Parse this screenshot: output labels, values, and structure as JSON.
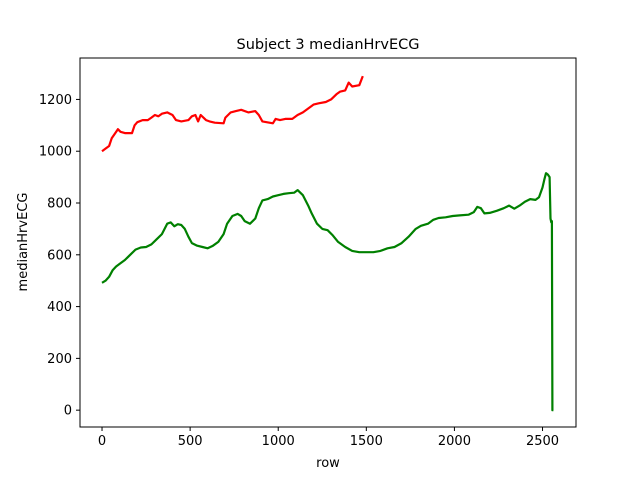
{
  "chart_data": {
    "type": "line",
    "title": "Subject 3 medianHrvECG",
    "xlabel": "row",
    "ylabel": "medianHrvECG",
    "xlim": [
      -125,
      2690
    ],
    "ylim": [
      -65,
      1360
    ],
    "xticks": [
      0,
      500,
      1000,
      1500,
      2000,
      2500
    ],
    "yticks": [
      0,
      200,
      400,
      600,
      800,
      1000,
      1200
    ],
    "grid": false,
    "legend": "none",
    "series": [
      {
        "color": "#ff0000",
        "points": [
          [
            0,
            1000
          ],
          [
            20,
            1010
          ],
          [
            40,
            1020
          ],
          [
            55,
            1050
          ],
          [
            70,
            1065
          ],
          [
            90,
            1085
          ],
          [
            105,
            1075
          ],
          [
            130,
            1070
          ],
          [
            170,
            1070
          ],
          [
            185,
            1100
          ],
          [
            200,
            1112
          ],
          [
            230,
            1120
          ],
          [
            260,
            1120
          ],
          [
            280,
            1130
          ],
          [
            300,
            1140
          ],
          [
            320,
            1135
          ],
          [
            340,
            1145
          ],
          [
            370,
            1150
          ],
          [
            400,
            1140
          ],
          [
            420,
            1120
          ],
          [
            450,
            1115
          ],
          [
            490,
            1120
          ],
          [
            510,
            1135
          ],
          [
            530,
            1140
          ],
          [
            545,
            1115
          ],
          [
            560,
            1140
          ],
          [
            590,
            1120
          ],
          [
            610,
            1115
          ],
          [
            640,
            1110
          ],
          [
            690,
            1108
          ],
          [
            700,
            1130
          ],
          [
            730,
            1150
          ],
          [
            760,
            1155
          ],
          [
            790,
            1160
          ],
          [
            830,
            1150
          ],
          [
            870,
            1155
          ],
          [
            890,
            1140
          ],
          [
            910,
            1115
          ],
          [
            950,
            1110
          ],
          [
            970,
            1108
          ],
          [
            985,
            1125
          ],
          [
            1010,
            1120
          ],
          [
            1040,
            1125
          ],
          [
            1080,
            1125
          ],
          [
            1110,
            1140
          ],
          [
            1140,
            1150
          ],
          [
            1170,
            1165
          ],
          [
            1200,
            1180
          ],
          [
            1230,
            1185
          ],
          [
            1270,
            1190
          ],
          [
            1300,
            1200
          ],
          [
            1330,
            1220
          ],
          [
            1350,
            1230
          ],
          [
            1380,
            1235
          ],
          [
            1400,
            1265
          ],
          [
            1420,
            1250
          ],
          [
            1460,
            1255
          ],
          [
            1480,
            1290
          ]
        ]
      },
      {
        "color": "#008000",
        "points": [
          [
            0,
            492
          ],
          [
            20,
            500
          ],
          [
            40,
            515
          ],
          [
            60,
            540
          ],
          [
            80,
            555
          ],
          [
            100,
            565
          ],
          [
            130,
            580
          ],
          [
            160,
            600
          ],
          [
            190,
            620
          ],
          [
            220,
            628
          ],
          [
            250,
            630
          ],
          [
            280,
            640
          ],
          [
            310,
            660
          ],
          [
            340,
            680
          ],
          [
            370,
            720
          ],
          [
            390,
            725
          ],
          [
            410,
            710
          ],
          [
            430,
            718
          ],
          [
            450,
            715
          ],
          [
            470,
            700
          ],
          [
            490,
            670
          ],
          [
            510,
            645
          ],
          [
            540,
            635
          ],
          [
            570,
            630
          ],
          [
            600,
            625
          ],
          [
            630,
            635
          ],
          [
            660,
            650
          ],
          [
            690,
            680
          ],
          [
            710,
            720
          ],
          [
            740,
            750
          ],
          [
            770,
            758
          ],
          [
            790,
            750
          ],
          [
            810,
            730
          ],
          [
            840,
            720
          ],
          [
            870,
            740
          ],
          [
            890,
            780
          ],
          [
            910,
            810
          ],
          [
            940,
            815
          ],
          [
            970,
            825
          ],
          [
            1000,
            830
          ],
          [
            1030,
            835
          ],
          [
            1060,
            838
          ],
          [
            1090,
            840
          ],
          [
            1110,
            850
          ],
          [
            1140,
            830
          ],
          [
            1170,
            790
          ],
          [
            1190,
            760
          ],
          [
            1220,
            720
          ],
          [
            1250,
            700
          ],
          [
            1280,
            695
          ],
          [
            1310,
            675
          ],
          [
            1340,
            650
          ],
          [
            1380,
            630
          ],
          [
            1420,
            615
          ],
          [
            1460,
            610
          ],
          [
            1500,
            610
          ],
          [
            1540,
            610
          ],
          [
            1580,
            615
          ],
          [
            1620,
            625
          ],
          [
            1660,
            630
          ],
          [
            1700,
            645
          ],
          [
            1740,
            670
          ],
          [
            1780,
            700
          ],
          [
            1810,
            712
          ],
          [
            1850,
            720
          ],
          [
            1880,
            735
          ],
          [
            1910,
            742
          ],
          [
            1950,
            745
          ],
          [
            1990,
            750
          ],
          [
            2030,
            752
          ],
          [
            2080,
            755
          ],
          [
            2110,
            765
          ],
          [
            2130,
            785
          ],
          [
            2150,
            780
          ],
          [
            2170,
            760
          ],
          [
            2200,
            762
          ],
          [
            2240,
            770
          ],
          [
            2280,
            780
          ],
          [
            2310,
            790
          ],
          [
            2340,
            778
          ],
          [
            2370,
            790
          ],
          [
            2400,
            805
          ],
          [
            2430,
            815
          ],
          [
            2460,
            812
          ],
          [
            2480,
            822
          ],
          [
            2500,
            860
          ],
          [
            2510,
            890
          ],
          [
            2520,
            915
          ],
          [
            2530,
            910
          ],
          [
            2540,
            900
          ],
          [
            2545,
            740
          ],
          [
            2550,
            725
          ],
          [
            2553,
            730
          ],
          [
            2556,
            0
          ],
          [
            2562,
            0
          ]
        ]
      }
    ]
  }
}
